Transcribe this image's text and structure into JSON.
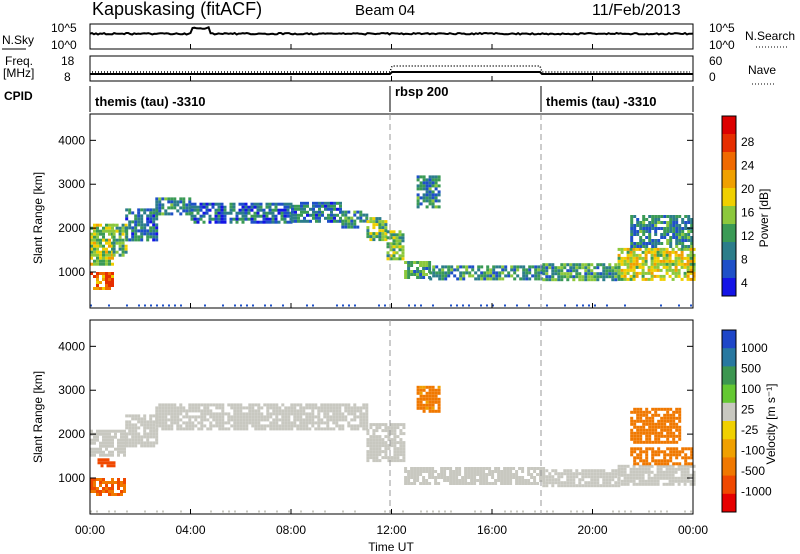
{
  "header": {
    "station": "Kapuskasing (fitACF)",
    "beam": "Beam 04",
    "date": "11/Feb/2013"
  },
  "summary": {
    "nsky_label": "N.Sky",
    "nsky_ticks": [
      "10^5",
      "10^0"
    ],
    "nsearch_label": "N.Search",
    "nsearch_ticks": [
      "10^5",
      "10^0"
    ],
    "freq_label": "Freq.",
    "freq_unit": "[MHz]",
    "freq_ticks": [
      "18",
      "8"
    ],
    "nave_label": "Nave",
    "nave_ticks": [
      "60",
      "0"
    ],
    "cpid_label": "CPID",
    "cpid_segments": [
      {
        "label": "themis (tau) -3310",
        "start_h": 0,
        "end_h": 12
      },
      {
        "label": "rbsp 200",
        "start_h": 12,
        "end_h": 18
      },
      {
        "label": "themis (tau) -3310",
        "start_h": 18,
        "end_h": 24
      }
    ]
  },
  "axes": {
    "x_ticks": [
      "00:00",
      "04:00",
      "08:00",
      "12:00",
      "16:00",
      "20:00",
      "00:00"
    ],
    "x_label": "Time UT",
    "y_ticks": [
      "1000",
      "2000",
      "3000",
      "4000"
    ],
    "y_label": "Slant Range [km]"
  },
  "power_scale": {
    "label": "Power [dB]",
    "ticks": [
      "28",
      "24",
      "20",
      "16",
      "12",
      "8",
      "4"
    ]
  },
  "velocity_scale": {
    "label": "Velocity [m s⁻¹]",
    "ticks": [
      "1000",
      "500",
      "100",
      "25",
      "-25",
      "-100",
      "-500",
      "-1000"
    ]
  },
  "colors": {
    "power": [
      "#1414e6",
      "#1e50c8",
      "#2c7d8a",
      "#3a9a55",
      "#8cc83c",
      "#f0d000",
      "#f0a000",
      "#f06a00",
      "#e62e00",
      "#dc0000"
    ],
    "velocity": [
      "#1e46c8",
      "#2878a0",
      "#3c9650",
      "#64c832",
      "#c8c8c0",
      "#f0d000",
      "#f0a000",
      "#f07800",
      "#f04800",
      "#e60000"
    ],
    "ground_scatter": "#c8c8c0"
  },
  "chart_data": [
    {
      "type": "heatmap",
      "panel": "power",
      "x_range_h": [
        0,
        24
      ],
      "y_range_km": [
        180,
        4600
      ],
      "bands": [
        {
          "t0": 0.0,
          "t1": 0.9,
          "r0": 1150,
          "r1": 2100,
          "value": 14
        },
        {
          "t0": 0.0,
          "t1": 0.9,
          "r0": 650,
          "r1": 1000,
          "value": 22
        },
        {
          "t0": 0.9,
          "t1": 1.4,
          "r0": 1350,
          "r1": 2100,
          "value": 11
        },
        {
          "t0": 1.4,
          "t1": 2.6,
          "r0": 1700,
          "r1": 2450,
          "value": 7
        },
        {
          "t0": 2.6,
          "t1": 4.0,
          "r0": 2350,
          "r1": 2700,
          "value": 8
        },
        {
          "t0": 4.0,
          "t1": 8.0,
          "r0": 2150,
          "r1": 2580,
          "value": 6
        },
        {
          "t0": 8.0,
          "t1": 10.0,
          "r0": 2150,
          "r1": 2600,
          "value": 7
        },
        {
          "t0": 10.0,
          "t1": 11.0,
          "r0": 2050,
          "r1": 2400,
          "value": 8
        },
        {
          "t0": 11.0,
          "t1": 11.8,
          "r0": 1750,
          "r1": 2250,
          "value": 12
        },
        {
          "t0": 11.8,
          "t1": 12.5,
          "r0": 1300,
          "r1": 1950,
          "value": 12
        },
        {
          "t0": 12.5,
          "t1": 13.5,
          "r0": 900,
          "r1": 1250,
          "value": 10
        },
        {
          "t0": 13.0,
          "t1": 13.9,
          "r0": 2500,
          "r1": 3200,
          "value": 8
        },
        {
          "t0": 13.5,
          "t1": 18.0,
          "r0": 850,
          "r1": 1150,
          "value": 9
        },
        {
          "t0": 18.0,
          "t1": 21.0,
          "r0": 850,
          "r1": 1200,
          "value": 10
        },
        {
          "t0": 21.0,
          "t1": 24.0,
          "r0": 850,
          "r1": 1550,
          "value": 16
        },
        {
          "t0": 21.5,
          "t1": 24.0,
          "r0": 1550,
          "r1": 2300,
          "value": 8
        }
      ]
    },
    {
      "type": "heatmap",
      "panel": "velocity",
      "x_range_h": [
        0,
        24
      ],
      "y_range_km": [
        180,
        4600
      ],
      "bands": [
        {
          "t0": 0.0,
          "t1": 1.4,
          "r0": 1550,
          "r1": 2100,
          "value": 0,
          "ground": true
        },
        {
          "t0": 0.3,
          "t1": 0.9,
          "r0": 1250,
          "r1": 1450,
          "value": -400
        },
        {
          "t0": 0.0,
          "t1": 1.4,
          "r0": 650,
          "r1": 1000,
          "value": -300
        },
        {
          "t0": 1.4,
          "t1": 2.6,
          "r0": 1700,
          "r1": 2450,
          "value": 0,
          "ground": true
        },
        {
          "t0": 2.6,
          "t1": 11.0,
          "r0": 2150,
          "r1": 2700,
          "value": 0,
          "ground": true
        },
        {
          "t0": 11.0,
          "t1": 12.5,
          "r0": 1400,
          "r1": 2250,
          "value": 0,
          "ground": true
        },
        {
          "t0": 12.5,
          "t1": 18.0,
          "r0": 900,
          "r1": 1250,
          "value": 0,
          "ground": true
        },
        {
          "t0": 13.0,
          "t1": 13.9,
          "r0": 2500,
          "r1": 3100,
          "value": -120
        },
        {
          "t0": 18.0,
          "t1": 21.0,
          "r0": 850,
          "r1": 1200,
          "value": 0,
          "ground": true
        },
        {
          "t0": 21.0,
          "t1": 24.0,
          "r0": 850,
          "r1": 1300,
          "value": 0,
          "ground": true
        },
        {
          "t0": 21.5,
          "t1": 24.0,
          "r0": 1300,
          "r1": 1700,
          "value": -200
        },
        {
          "t0": 21.5,
          "t1": 23.5,
          "r0": 1800,
          "r1": 2600,
          "value": -150
        }
      ]
    }
  ]
}
